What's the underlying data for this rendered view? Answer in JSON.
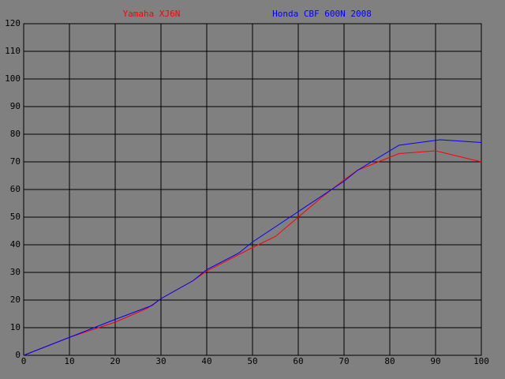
{
  "chart_data": {
    "type": "line",
    "xlim": [
      0,
      100
    ],
    "xticks": [
      0,
      10,
      20,
      30,
      40,
      50,
      60,
      70,
      80,
      90,
      100
    ],
    "ylim": [
      0,
      120
    ],
    "yticks": [
      0,
      10,
      20,
      30,
      40,
      50,
      60,
      70,
      80,
      90,
      100,
      110,
      120
    ],
    "grid": true,
    "series": [
      {
        "name": "Yamaha XJ6N",
        "color": "#ff0000",
        "x": [
          0,
          10,
          20,
          27,
          30,
          37,
          40,
          50,
          55,
          60,
          65,
          70,
          73,
          82,
          90,
          100
        ],
        "values": [
          0,
          6.5,
          12,
          17,
          20.5,
          27,
          30.5,
          39,
          43,
          50,
          57,
          63.5,
          67,
          73,
          74,
          70
        ]
      },
      {
        "name": "Honda CBF 600N 2008",
        "color": "#0000ff",
        "x": [
          0,
          10,
          20,
          28,
          30,
          37,
          40,
          47,
          50,
          60,
          70,
          73,
          82,
          91,
          100
        ],
        "values": [
          0,
          6.5,
          13,
          18,
          20.5,
          27,
          31,
          37,
          41,
          52,
          63,
          67,
          76,
          78,
          77
        ]
      }
    ]
  }
}
